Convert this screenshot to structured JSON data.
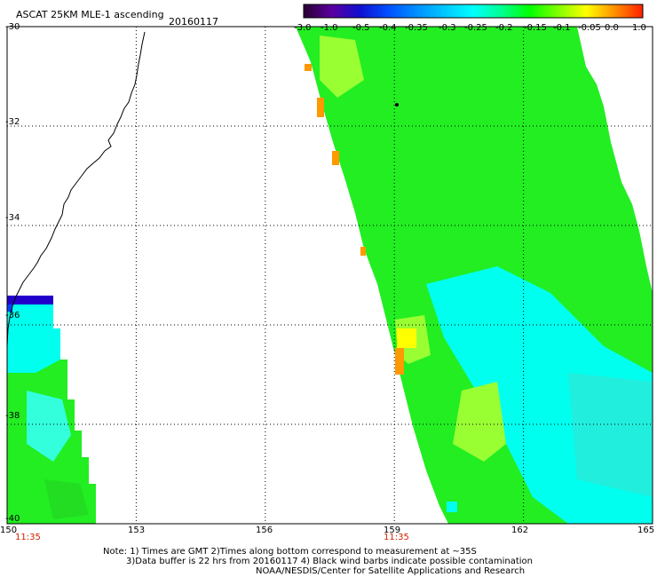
{
  "header": {
    "title": "ASCAT 25KM MLE-1 ascending",
    "date": "20160117"
  },
  "colorbar": {
    "labels": [
      "-3.0",
      "-1.0",
      "-0.5",
      "-0.4",
      "-0.35",
      "-0.3",
      "-0.25",
      "-0.2",
      "-0.15",
      "-0.1",
      "-0.05",
      "0.0",
      "1.0"
    ],
    "colors": [
      "#2a0030",
      "#5a00a0",
      "#1010d0",
      "#0050ff",
      "#0090ff",
      "#00c8ff",
      "#00ffff",
      "#00ff90",
      "#00ff00",
      "#80ff00",
      "#ffff00",
      "#ff9000",
      "#ff2000"
    ]
  },
  "map": {
    "lat_labels": [
      "-30",
      "-32",
      "-34",
      "-36",
      "-38",
      "-40"
    ],
    "lon_labels": [
      "150",
      "153",
      "156",
      "159",
      "162",
      "165"
    ],
    "time_labels": [
      "11:35",
      "11:35"
    ],
    "palette": {
      "green": "#22ee22",
      "yellowgreen": "#99ff33",
      "cyan": "#00ffee",
      "lightcyan": "#33ffdd",
      "blue": "#0044ff",
      "orange": "#ff9900",
      "darkblue": "#2200cc"
    }
  },
  "notes": {
    "line1": "Note: 1) Times are GMT 2)Times along bottom correspond to measurement at ~35S",
    "line2": "3)Data buffer is 22 hrs from 20160117 4) Black wind barbs indicate possible contamination",
    "line3": "NOAA/NESDIS/Center for Satellite Applications and Research"
  }
}
